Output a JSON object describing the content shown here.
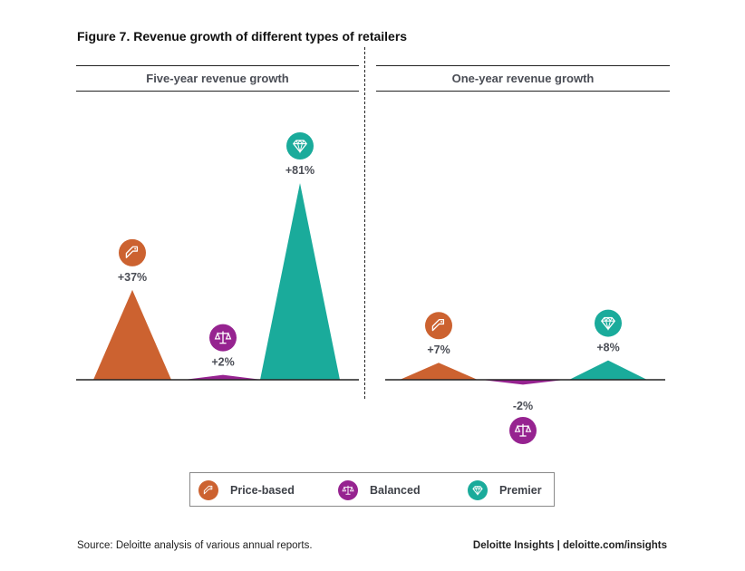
{
  "title": "Figure 7. Revenue growth of different types of retailers",
  "colors": {
    "price_based": "#cc6230",
    "balanced": "#962390",
    "premier": "#1aab9b"
  },
  "chart_data": [
    {
      "type": "area",
      "title": "Five-year revenue growth",
      "categories": [
        "Price-based",
        "Balanced",
        "Premier"
      ],
      "values": [
        37,
        2,
        81
      ],
      "labels": [
        "+37%",
        "+2%",
        "+81%"
      ],
      "unit": "%",
      "icons": [
        "price-tag-icon",
        "scales-icon",
        "diamond-icon"
      ]
    },
    {
      "type": "area",
      "title": "One-year revenue growth",
      "categories": [
        "Price-based",
        "Balanced",
        "Premier"
      ],
      "values": [
        7,
        -2,
        8
      ],
      "labels": [
        "+7%",
        "-2%",
        "+8%"
      ],
      "unit": "%",
      "icons": [
        "price-tag-icon",
        "scales-icon",
        "diamond-icon"
      ]
    }
  ],
  "legend": [
    {
      "label": "Price-based",
      "icon": "price-tag-icon"
    },
    {
      "label": "Balanced",
      "icon": "scales-icon"
    },
    {
      "label": "Premier",
      "icon": "diamond-icon"
    }
  ],
  "footer": {
    "source": "Source: Deloitte analysis of various annual reports.",
    "credit": "Deloitte Insights | deloitte.com/insights"
  }
}
